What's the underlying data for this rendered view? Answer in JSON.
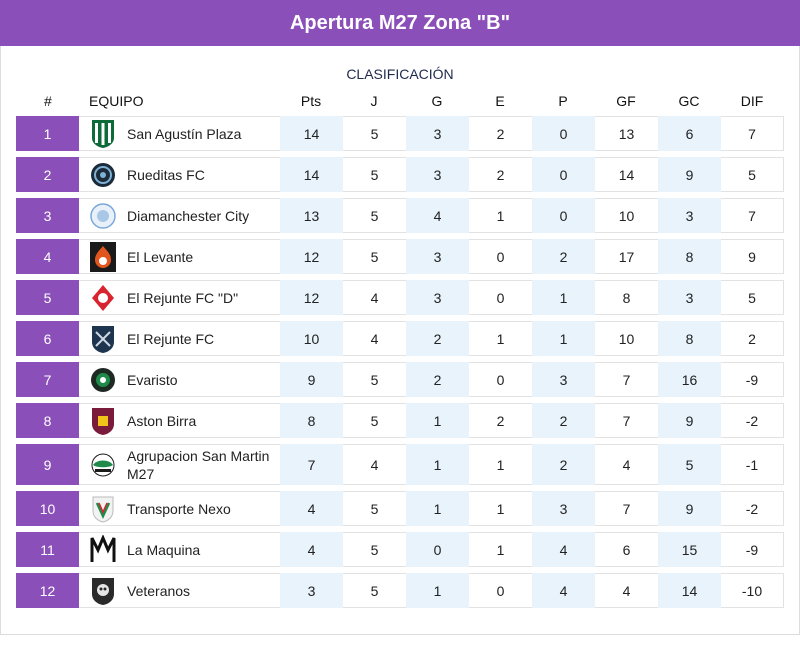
{
  "header": {
    "title": "Apertura M27 Zona \"B\""
  },
  "subtitle": "CLASIFICACIÓN",
  "columns": {
    "pos": "#",
    "team": "EQUIPO",
    "pts": "Pts",
    "j": "J",
    "g": "G",
    "e": "E",
    "p": "P",
    "gf": "GF",
    "gc": "GC",
    "dif": "DIF"
  },
  "colors": {
    "accent": "#8a4fb8",
    "shade": "#e8f3fb"
  },
  "rows": [
    {
      "pos": "1",
      "team": "San Agustín Plaza",
      "logo": "striped-shield-icon",
      "pts": "14",
      "j": "5",
      "g": "3",
      "e": "2",
      "p": "0",
      "gf": "13",
      "gc": "6",
      "dif": "7"
    },
    {
      "pos": "2",
      "team": "Rueditas FC",
      "logo": "round-badge-icon",
      "pts": "14",
      "j": "5",
      "g": "3",
      "e": "2",
      "p": "0",
      "gf": "14",
      "gc": "9",
      "dif": "5"
    },
    {
      "pos": "3",
      "team": "Diamanchester City",
      "logo": "circle-crest-icon",
      "pts": "13",
      "j": "5",
      "g": "4",
      "e": "1",
      "p": "0",
      "gf": "10",
      "gc": "3",
      "dif": "7"
    },
    {
      "pos": "4",
      "team": "El Levante",
      "logo": "flame-ball-icon",
      "pts": "12",
      "j": "5",
      "g": "3",
      "e": "0",
      "p": "2",
      "gf": "17",
      "gc": "8",
      "dif": "9"
    },
    {
      "pos": "5",
      "team": "El Rejunte FC \"D\"",
      "logo": "red-diamond-icon",
      "pts": "12",
      "j": "4",
      "g": "3",
      "e": "0",
      "p": "1",
      "gf": "8",
      "gc": "3",
      "dif": "5"
    },
    {
      "pos": "6",
      "team": "El Rejunte FC",
      "logo": "navy-shield-icon",
      "pts": "10",
      "j": "4",
      "g": "2",
      "e": "1",
      "p": "1",
      "gf": "10",
      "gc": "8",
      "dif": "2"
    },
    {
      "pos": "7",
      "team": "Evaristo",
      "logo": "green-ball-icon",
      "pts": "9",
      "j": "5",
      "g": "2",
      "e": "0",
      "p": "3",
      "gf": "7",
      "gc": "16",
      "dif": "-9"
    },
    {
      "pos": "8",
      "team": "Aston Birra",
      "logo": "lion-shield-icon",
      "pts": "8",
      "j": "5",
      "g": "1",
      "e": "2",
      "p": "2",
      "gf": "7",
      "gc": "9",
      "dif": "-2"
    },
    {
      "pos": "9",
      "team": "Agrupacion San Martin M27",
      "logo": "green-wing-icon",
      "pts": "7",
      "j": "4",
      "g": "1",
      "e": "1",
      "p": "2",
      "gf": "4",
      "gc": "5",
      "dif": "-1"
    },
    {
      "pos": "10",
      "team": "Transporte Nexo",
      "logo": "v-shield-icon",
      "pts": "4",
      "j": "5",
      "g": "1",
      "e": "1",
      "p": "3",
      "gf": "7",
      "gc": "9",
      "dif": "-2"
    },
    {
      "pos": "11",
      "team": "La Maquina",
      "logo": "monogram-icon",
      "pts": "4",
      "j": "5",
      "g": "0",
      "e": "1",
      "p": "4",
      "gf": "6",
      "gc": "15",
      "dif": "-9"
    },
    {
      "pos": "12",
      "team": "Veteranos",
      "logo": "skull-crest-icon",
      "pts": "3",
      "j": "5",
      "g": "1",
      "e": "0",
      "p": "4",
      "gf": "4",
      "gc": "14",
      "dif": "-10"
    }
  ]
}
